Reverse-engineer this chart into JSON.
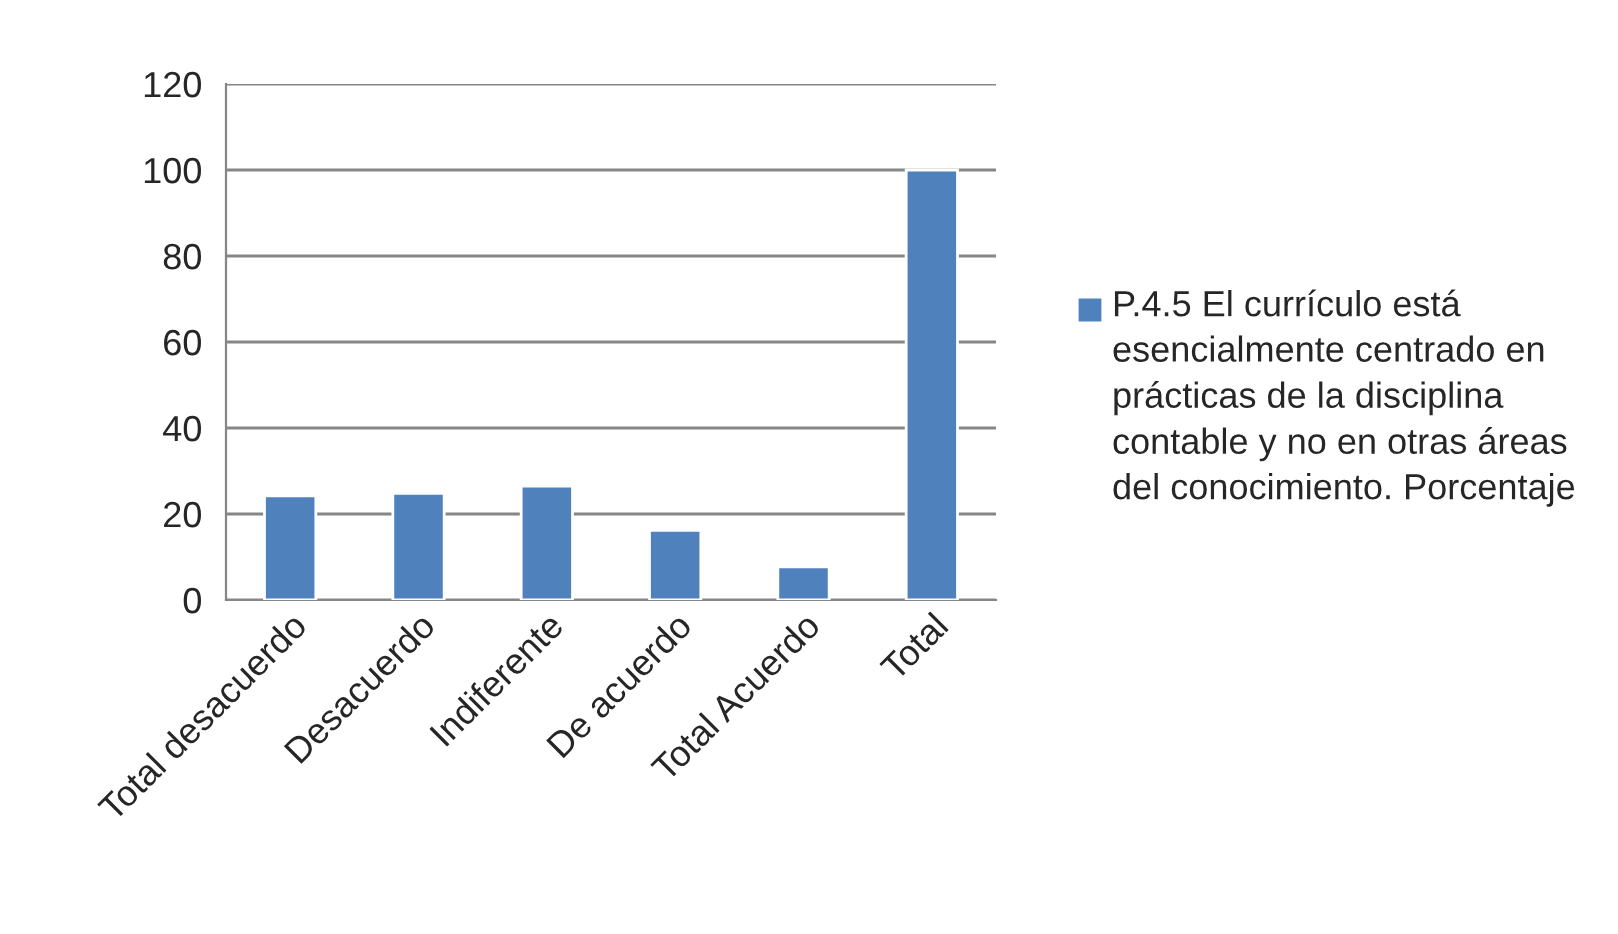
{
  "chart_data": {
    "type": "bar",
    "categories": [
      "Total desacuerdo",
      "Desacuerdo",
      "Indiferente",
      "De acuerdo",
      "Total Acuerdo",
      "Total"
    ],
    "series": [
      {
        "name": "P.4.5 El currículo está esencialmente centrado en prácticas de la disciplina contable y no en otras áreas del conocimiento. Porcentaje",
        "color": "#4f81bd",
        "values": [
          24.2,
          24.8,
          26.5,
          16.2,
          7.7,
          100
        ]
      }
    ],
    "ylim": [
      0,
      120
    ],
    "yticks": [
      0,
      20,
      40,
      60,
      80,
      100,
      120
    ],
    "grid": "y",
    "legend": "right"
  }
}
